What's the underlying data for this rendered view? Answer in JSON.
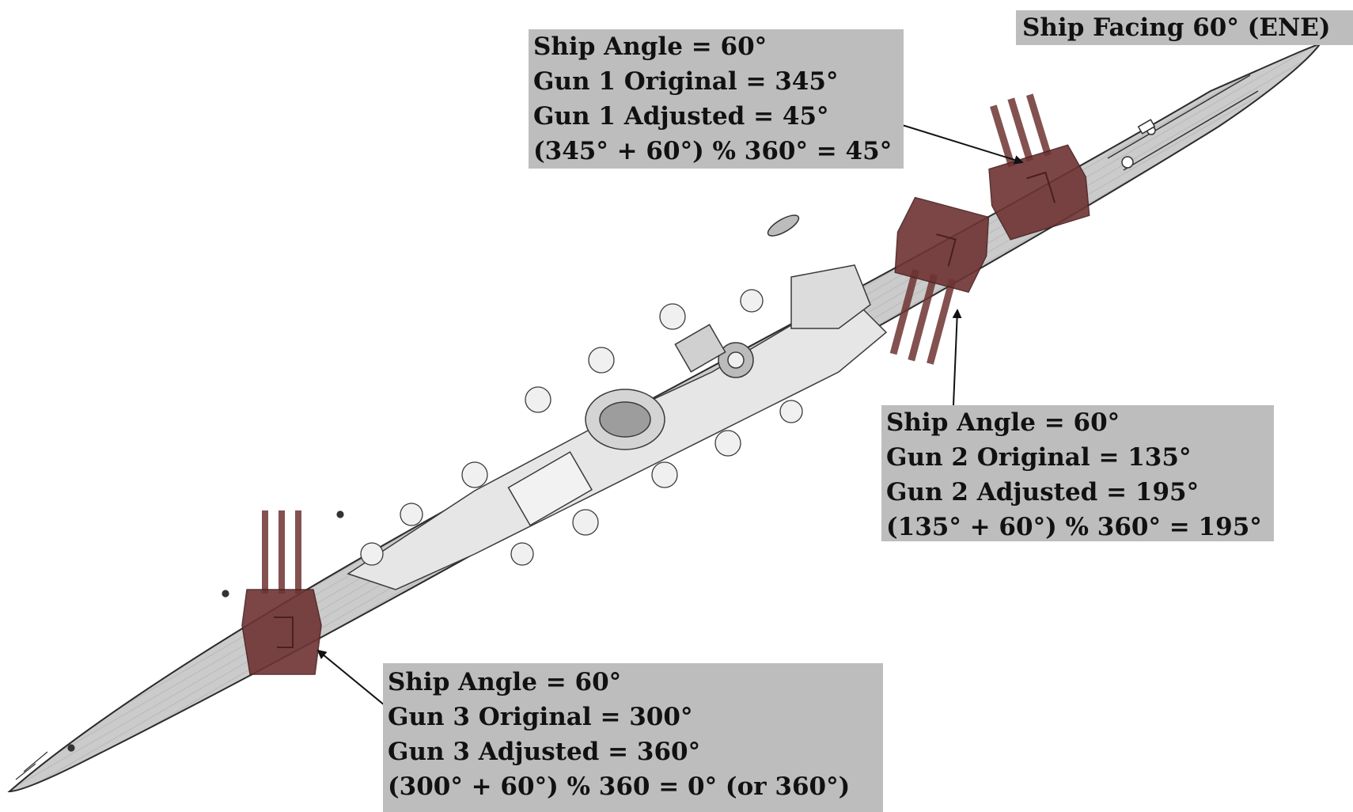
{
  "heading": {
    "text": "Ship Facing 60° (ENE)"
  },
  "guns": [
    {
      "ship_angle": "Ship Angle = 60°",
      "original": "Gun 1 Original = 345°",
      "adjusted": "Gun 1 Adjusted = 45°",
      "formula": "(345° + 60°) % 360° = 45°"
    },
    {
      "ship_angle": "Ship Angle = 60°",
      "original": "Gun 2 Original = 135°",
      "adjusted": "Gun 2 Adjusted = 195°",
      "formula": "(135° + 60°) % 360° = 195°"
    },
    {
      "ship_angle": "Ship Angle = 60°",
      "original": "Gun 3 Original = 300°",
      "adjusted": "Gun 3 Adjusted = 360°",
      "formula": "(300° + 60°) % 360 = 0° (or 360°)"
    }
  ],
  "colors": {
    "hull": "#c9c9c9",
    "deck_lines": "#8a8a8a",
    "outline": "#2b2b2b",
    "turret": "#6e3333",
    "label_background": "#bdbdbd",
    "arrow": "#111111"
  }
}
